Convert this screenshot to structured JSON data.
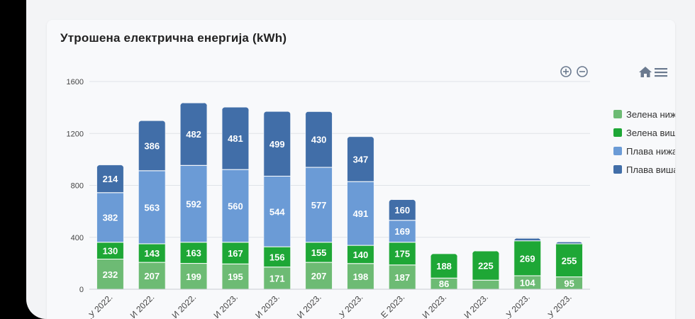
{
  "chart_data": {
    "type": "bar",
    "stacked": true,
    "title": "Утрошена електрична енергија (kWh)",
    "categories": [
      "...У 2022.",
      "...И 2022.",
      "...И 2022.",
      "...И 2023.",
      "...И 2023.",
      "...И 2023.",
      "...У 2023.",
      "...Е 2023.",
      "...И 2023.",
      "...И 2023.",
      "...У 2023.",
      "...У 2023."
    ],
    "series": [
      {
        "name": "Зелена нижа",
        "color": "#6dbb74",
        "values": [
          232,
          207,
          199,
          195,
          171,
          207,
          198,
          187,
          86,
          70,
          104,
          95
        ]
      },
      {
        "name": "Зелена виша",
        "color": "#1ea736",
        "values": [
          130,
          143,
          163,
          167,
          156,
          155,
          140,
          175,
          188,
          225,
          269,
          255
        ]
      },
      {
        "name": "Плава нижа",
        "color": "#6b9bd6",
        "values": [
          382,
          563,
          592,
          560,
          544,
          577,
          491,
          169,
          0,
          0,
          0,
          0
        ]
      },
      {
        "name": "Плава виша",
        "color": "#416ea8",
        "values": [
          214,
          386,
          482,
          481,
          499,
          430,
          347,
          160,
          0,
          0,
          20,
          15
        ]
      }
    ],
    "y_ticks": [
      0,
      400,
      800,
      1200,
      1600
    ],
    "ylim": [
      0,
      1600
    ],
    "grid": true,
    "legend": "right"
  },
  "toolbar": {
    "zoom_in_icon": "zoom-in-icon",
    "zoom_out_icon": "zoom-out-icon",
    "home_icon": "home-icon",
    "menu_icon": "menu-icon"
  }
}
